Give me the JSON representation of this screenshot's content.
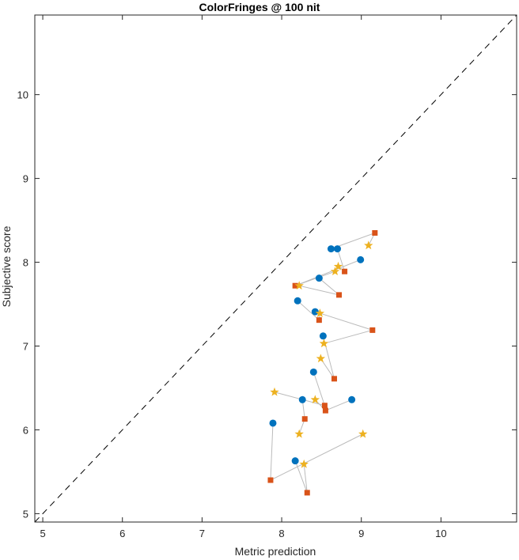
{
  "chart_data": {
    "type": "scatter",
    "title": "ColorFringes @ 100 nit",
    "xlabel": "Metric prediction",
    "ylabel": "Subjective score",
    "xlim": [
      4.9,
      10.95
    ],
    "ylim": [
      4.9,
      10.95
    ],
    "xticks": [
      5,
      6,
      7,
      8,
      9,
      10
    ],
    "yticks": [
      5,
      6,
      7,
      8,
      9,
      10
    ],
    "grid": false,
    "box": true,
    "identity_line": {
      "style": "dashed",
      "color": "#000000"
    },
    "colors": {
      "series1": "#0072BD",
      "series2": "#D95319",
      "series3": "#EDB120",
      "connector": "#BBBBBB"
    },
    "series": [
      {
        "marker": "circle",
        "points": [
          [
            8.62,
            8.16
          ],
          [
            8.7,
            8.16
          ],
          [
            8.99,
            8.03
          ],
          [
            8.47,
            7.81
          ],
          [
            8.2,
            7.54
          ],
          [
            8.42,
            7.41
          ],
          [
            8.52,
            7.12
          ],
          [
            8.4,
            6.69
          ],
          [
            8.88,
            6.36
          ],
          [
            8.26,
            6.36
          ],
          [
            7.89,
            6.08
          ],
          [
            8.17,
            5.63
          ]
        ]
      },
      {
        "marker": "square",
        "points": [
          [
            9.17,
            8.35
          ],
          [
            8.79,
            7.89
          ],
          [
            8.17,
            7.72
          ],
          [
            8.72,
            7.61
          ],
          [
            8.47,
            7.31
          ],
          [
            9.14,
            7.19
          ],
          [
            8.66,
            6.61
          ],
          [
            8.54,
            6.29
          ],
          [
            8.55,
            6.23
          ],
          [
            8.29,
            6.13
          ],
          [
            7.86,
            5.4
          ],
          [
            8.32,
            5.25
          ]
        ]
      },
      {
        "marker": "star",
        "points": [
          [
            9.09,
            8.2
          ],
          [
            8.71,
            7.95
          ],
          [
            8.67,
            7.89
          ],
          [
            8.22,
            7.72
          ],
          [
            8.48,
            7.39
          ],
          [
            8.53,
            7.03
          ],
          [
            8.49,
            6.85
          ],
          [
            7.91,
            6.45
          ],
          [
            8.42,
            6.36
          ],
          [
            8.22,
            5.95
          ],
          [
            9.02,
            5.95
          ],
          [
            8.28,
            5.59
          ]
        ]
      }
    ]
  }
}
